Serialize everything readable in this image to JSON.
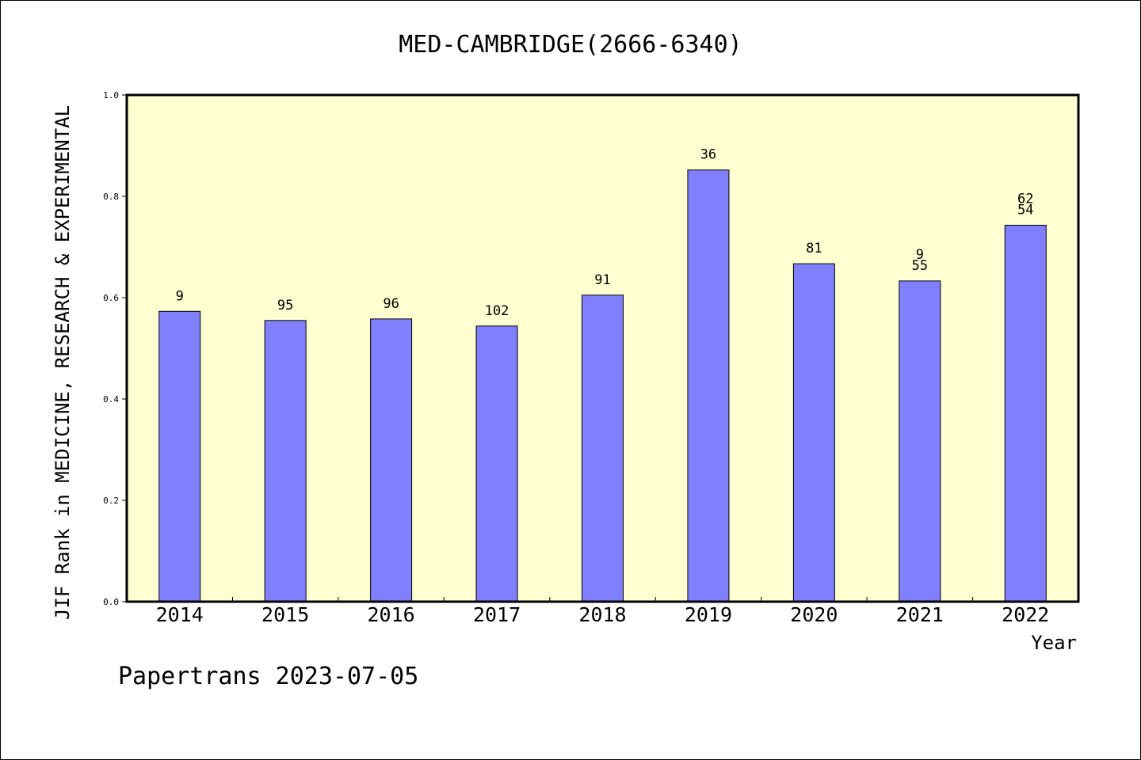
{
  "chart_data": {
    "type": "bar",
    "title": "MED-CAMBRIDGE(2666-6340)",
    "ylabel": "JIF Rank in MEDICINE, RESEARCH & EXPERIMENTAL",
    "xlabel": "Year",
    "ylim": [
      0,
      1.0
    ],
    "y_ticks": [
      "0.0",
      "0.2",
      "0.4",
      "0.6",
      "0.8",
      "1.0"
    ],
    "categories": [
      "2014",
      "2015",
      "2016",
      "2017",
      "2018",
      "2019",
      "2020",
      "2021",
      "2022"
    ],
    "values": [
      0.573,
      0.555,
      0.558,
      0.544,
      0.605,
      0.852,
      0.667,
      0.633,
      0.743
    ],
    "bar_labels": [
      [
        "9"
      ],
      [
        "95"
      ],
      [
        "96"
      ],
      [
        "102"
      ],
      [
        "91"
      ],
      [
        "36"
      ],
      [
        "81"
      ],
      [
        "9",
        "55"
      ],
      [
        "62",
        "54"
      ]
    ],
    "colors": {
      "plot_bg": "#ffffd2",
      "bar": "#8080ff",
      "axis": "#000000"
    },
    "grid": false
  },
  "footer": {
    "watermark": "Papertrans 2023-07-05"
  }
}
